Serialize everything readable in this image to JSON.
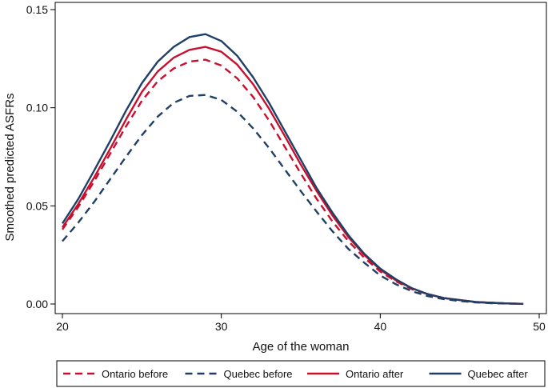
{
  "chart_data": {
    "type": "line",
    "title": "",
    "xlabel": "Age of the woman",
    "ylabel": "Smoothed predicted ASFRs",
    "xlim": [
      20,
      50
    ],
    "ylim": [
      0,
      0.15
    ],
    "xticks": [
      20,
      30,
      40,
      50
    ],
    "yticks": [
      0,
      0.05,
      0.1,
      0.15
    ],
    "xtick_labels": [
      "20",
      "30",
      "40",
      "50"
    ],
    "ytick_labels": [
      "0.00",
      "0.05",
      "0.10",
      "0.15"
    ],
    "grid": false,
    "legend_position": "bottom",
    "x": [
      20,
      21,
      22,
      23,
      24,
      25,
      26,
      27,
      28,
      29,
      30,
      31,
      32,
      33,
      34,
      35,
      36,
      37,
      38,
      39,
      40,
      41,
      42,
      43,
      44,
      45,
      46,
      47,
      48,
      49
    ],
    "series": [
      {
        "name": "Ontario before",
        "color": "#c8102e",
        "dash": "dashed",
        "values": [
          0.038,
          0.0495,
          0.0625,
          0.0765,
          0.0905,
          0.1035,
          0.1135,
          0.12,
          0.1235,
          0.1245,
          0.1215,
          0.115,
          0.1055,
          0.0935,
          0.08,
          0.0665,
          0.0535,
          0.042,
          0.032,
          0.0235,
          0.0165,
          0.0115,
          0.0075,
          0.005,
          0.003,
          0.002,
          0.001,
          0.0006,
          0.0003,
          0.0001
        ]
      },
      {
        "name": "Quebec before",
        "color": "#1f3f66",
        "dash": "dashed",
        "values": [
          0.032,
          0.0415,
          0.052,
          0.0635,
          0.075,
          0.086,
          0.0955,
          0.1025,
          0.106,
          0.1065,
          0.104,
          0.098,
          0.0895,
          0.0795,
          0.0685,
          0.0575,
          0.047,
          0.037,
          0.028,
          0.021,
          0.0145,
          0.01,
          0.0065,
          0.004,
          0.0025,
          0.0015,
          0.0008,
          0.0004,
          0.0002,
          0.0001
        ]
      },
      {
        "name": "Ontario after",
        "color": "#c8102e",
        "dash": "solid",
        "values": [
          0.039,
          0.051,
          0.0645,
          0.079,
          0.094,
          0.108,
          0.1185,
          0.1255,
          0.1295,
          0.131,
          0.1285,
          0.122,
          0.112,
          0.0995,
          0.0855,
          0.071,
          0.0575,
          0.045,
          0.034,
          0.025,
          0.0175,
          0.012,
          0.008,
          0.005,
          0.003,
          0.002,
          0.001,
          0.0006,
          0.0003,
          0.0001
        ]
      },
      {
        "name": "Quebec after",
        "color": "#1f3f66",
        "dash": "solid",
        "values": [
          0.041,
          0.0535,
          0.068,
          0.083,
          0.0985,
          0.1125,
          0.1235,
          0.131,
          0.136,
          0.1375,
          0.134,
          0.1265,
          0.1155,
          0.1025,
          0.088,
          0.0735,
          0.059,
          0.0465,
          0.035,
          0.0255,
          0.018,
          0.0125,
          0.008,
          0.005,
          0.003,
          0.002,
          0.001,
          0.0006,
          0.0003,
          0.0001
        ]
      }
    ]
  }
}
